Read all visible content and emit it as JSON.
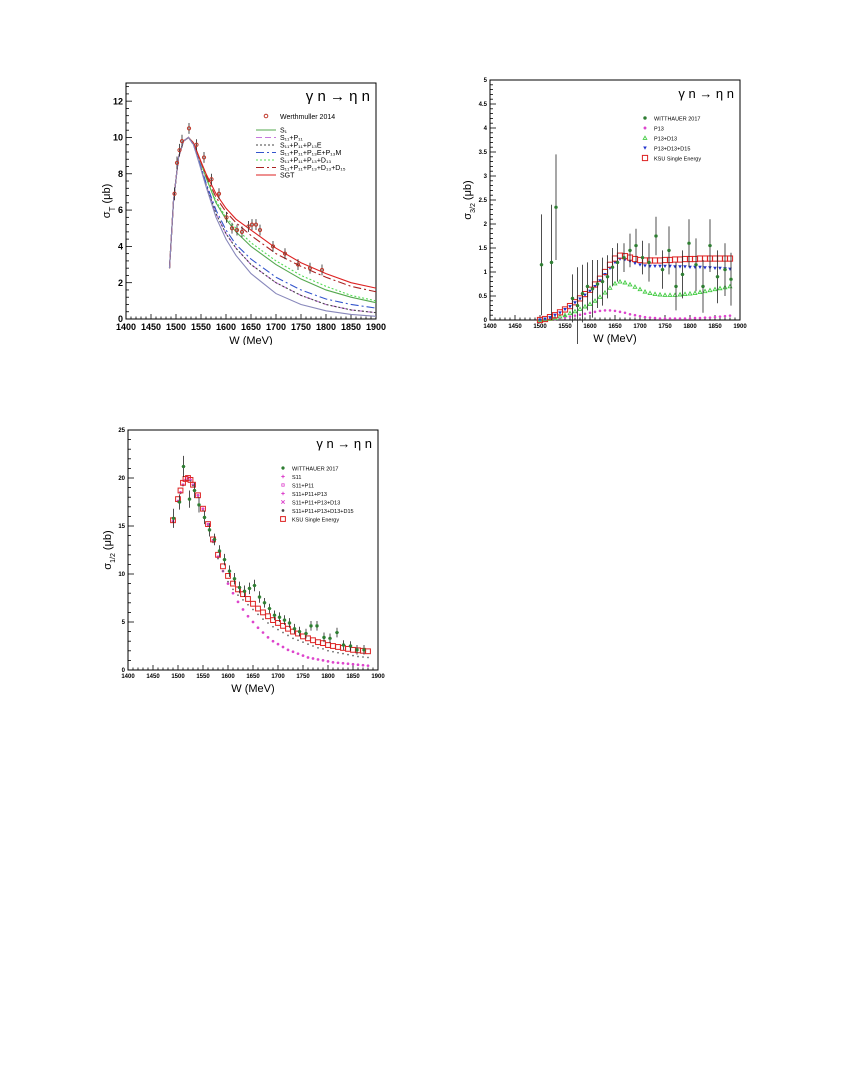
{
  "chart_data": [
    {
      "type": "line",
      "title": "γ n → η n",
      "xlabel": "W (MeV)",
      "ylabel": "σ_T (μb)",
      "xlim": [
        1400,
        1900
      ],
      "ylim": [
        0,
        13
      ],
      "xticks": [
        1400,
        1450,
        1500,
        1550,
        1600,
        1650,
        1700,
        1750,
        1800,
        1850,
        1900
      ],
      "yticks": [
        0,
        2,
        4,
        6,
        8,
        10,
        12
      ],
      "grid": false,
      "legend_position": "top-right",
      "data_series": {
        "name": "Werthmuller 2014",
        "color": "#c0392b",
        "points": [
          {
            "x": 1497,
            "y": 6.9,
            "err": 0.35
          },
          {
            "x": 1502,
            "y": 8.6,
            "err": 0.35
          },
          {
            "x": 1507,
            "y": 9.3,
            "err": 0.35
          },
          {
            "x": 1512,
            "y": 9.8,
            "err": 0.35
          },
          {
            "x": 1526,
            "y": 10.5,
            "err": 0.3
          },
          {
            "x": 1541,
            "y": 9.6,
            "err": 0.3
          },
          {
            "x": 1556,
            "y": 8.9,
            "err": 0.3
          },
          {
            "x": 1571,
            "y": 7.7,
            "err": 0.3
          },
          {
            "x": 1586,
            "y": 6.9,
            "err": 0.3
          },
          {
            "x": 1601,
            "y": 5.6,
            "err": 0.3
          },
          {
            "x": 1612,
            "y": 5.0,
            "err": 0.3
          },
          {
            "x": 1622,
            "y": 4.9,
            "err": 0.3
          },
          {
            "x": 1632,
            "y": 4.8,
            "err": 0.3
          },
          {
            "x": 1645,
            "y": 5.1,
            "err": 0.3
          },
          {
            "x": 1652,
            "y": 5.2,
            "err": 0.3
          },
          {
            "x": 1660,
            "y": 5.2,
            "err": 0.3
          },
          {
            "x": 1668,
            "y": 4.9,
            "err": 0.3
          },
          {
            "x": 1694,
            "y": 4.0,
            "err": 0.3
          },
          {
            "x": 1718,
            "y": 3.6,
            "err": 0.3
          },
          {
            "x": 1744,
            "y": 3.0,
            "err": 0.3
          },
          {
            "x": 1768,
            "y": 2.8,
            "err": 0.3
          },
          {
            "x": 1792,
            "y": 2.7,
            "err": 0.3
          }
        ]
      },
      "curve_x": [
        1487,
        1495,
        1505,
        1515,
        1525,
        1535,
        1545,
        1560,
        1580,
        1600,
        1620,
        1650,
        1700,
        1750,
        1800,
        1850,
        1900
      ],
      "curves": [
        {
          "name": "S₁",
          "color": "#55a84f",
          "dash": "solid",
          "values": [
            2.8,
            6.5,
            8.9,
            9.8,
            10.0,
            9.7,
            9.0,
            7.8,
            6.4,
            5.5,
            4.8,
            4.0,
            3.0,
            2.2,
            1.6,
            1.2,
            0.9
          ]
        },
        {
          "name": "S₁₁+P₁₁",
          "color": "#c678dd",
          "dash": "6,3",
          "values": [
            2.8,
            6.5,
            8.9,
            9.8,
            10.0,
            9.6,
            8.8,
            7.4,
            5.8,
            4.7,
            3.9,
            3.0,
            2.0,
            1.3,
            0.8,
            0.5,
            0.35
          ]
        },
        {
          "name": "S₁₁+P₁₁+P₁₃E",
          "color": "#444444",
          "dash": "2,2",
          "values": [
            2.8,
            6.5,
            8.9,
            9.8,
            10.0,
            9.6,
            8.8,
            7.4,
            5.8,
            4.7,
            3.9,
            3.0,
            2.0,
            1.3,
            0.8,
            0.5,
            0.35
          ]
        },
        {
          "name": "S₁₁+P₁₁+P₁₃E+P₁₃M",
          "color": "#3355cc",
          "dash": "8,3,2,3",
          "values": [
            2.8,
            6.5,
            8.9,
            9.8,
            10.0,
            9.6,
            8.8,
            7.5,
            6.0,
            4.9,
            4.1,
            3.3,
            2.3,
            1.6,
            1.1,
            0.8,
            0.6
          ]
        },
        {
          "name": "S₁₁+P₁₁+P₁₃+D₁₃",
          "color": "#55dd55",
          "dash": "2,2",
          "values": [
            2.8,
            6.5,
            8.9,
            9.8,
            10.0,
            9.7,
            9.0,
            7.8,
            6.5,
            5.6,
            5.0,
            4.2,
            3.2,
            2.4,
            1.8,
            1.3,
            1.0
          ]
        },
        {
          "name": "S₁₁+P₁₁+P₁₃+D₁₃+D₁₅",
          "color": "#aa2222",
          "dash": "8,3,2,3",
          "values": [
            2.8,
            6.5,
            8.9,
            9.8,
            10.0,
            9.7,
            9.0,
            7.9,
            6.7,
            5.9,
            5.3,
            4.6,
            3.6,
            2.9,
            2.3,
            1.8,
            1.5
          ]
        },
        {
          "name": "SGT",
          "color": "#dd2222",
          "dash": "solid",
          "values": [
            2.8,
            6.5,
            8.9,
            9.8,
            10.0,
            9.7,
            9.0,
            8.0,
            6.9,
            6.1,
            5.5,
            4.9,
            3.9,
            3.1,
            2.5,
            2.0,
            1.7
          ]
        },
        {
          "name": "",
          "color": "#8888bb",
          "dash": "solid",
          "values": [
            2.8,
            6.5,
            8.9,
            9.8,
            10.0,
            9.6,
            8.7,
            7.3,
            5.6,
            4.4,
            3.5,
            2.5,
            1.4,
            0.8,
            0.45,
            0.25,
            0.15
          ]
        }
      ]
    },
    {
      "type": "scatter",
      "title": "γ n → η n",
      "xlabel": "W (MeV)",
      "ylabel": "σ_3/2 (μb)",
      "xlim": [
        1400,
        1900
      ],
      "ylim": [
        0,
        5
      ],
      "xticks": [
        1400,
        1450,
        1500,
        1550,
        1600,
        1650,
        1700,
        1750,
        1800,
        1850,
        1900
      ],
      "yticks": [
        0,
        0.5,
        1,
        1.5,
        2,
        2.5,
        3,
        3.5,
        4,
        4.5,
        5
      ],
      "grid": false,
      "legend_position": "top-right",
      "legend": [
        {
          "name": "WITTHAUER 2017",
          "marker": "star",
          "color": "#2e7d32"
        },
        {
          "name": "P13",
          "marker": "dot",
          "color": "#dd44cc"
        },
        {
          "name": "P13+D13",
          "marker": "triangle",
          "color": "#44cc44"
        },
        {
          "name": "P13+D13+D15",
          "marker": "triangle-down",
          "color": "#2233cc"
        },
        {
          "name": "KSU Single Energy",
          "marker": "open-square",
          "color": "#dd2222"
        }
      ],
      "witthauer": [
        {
          "x": 1503,
          "y": 1.15,
          "err": 1.05
        },
        {
          "x": 1523,
          "y": 1.2,
          "err": 1.2
        },
        {
          "x": 1532,
          "y": 2.35,
          "err": 1.1
        },
        {
          "x": 1565,
          "y": 0.45,
          "err": 0.5
        },
        {
          "x": 1575,
          "y": 0.3,
          "err": 0.8
        },
        {
          "x": 1585,
          "y": 0.55,
          "err": 0.6
        },
        {
          "x": 1595,
          "y": 0.7,
          "err": 0.5
        },
        {
          "x": 1605,
          "y": 0.65,
          "err": 0.6
        },
        {
          "x": 1615,
          "y": 0.75,
          "err": 0.5
        },
        {
          "x": 1625,
          "y": 0.8,
          "err": 0.5
        },
        {
          "x": 1635,
          "y": 0.9,
          "err": 0.45
        },
        {
          "x": 1645,
          "y": 1.1,
          "err": 0.4
        },
        {
          "x": 1655,
          "y": 1.2,
          "err": 0.4
        },
        {
          "x": 1668,
          "y": 1.3,
          "err": 0.3
        },
        {
          "x": 1680,
          "y": 1.45,
          "err": 0.35
        },
        {
          "x": 1692,
          "y": 1.55,
          "err": 0.35
        },
        {
          "x": 1705,
          "y": 1.3,
          "err": 0.35
        },
        {
          "x": 1718,
          "y": 1.2,
          "err": 0.4
        },
        {
          "x": 1732,
          "y": 1.75,
          "err": 0.4
        },
        {
          "x": 1745,
          "y": 1.05,
          "err": 0.4
        },
        {
          "x": 1758,
          "y": 1.45,
          "err": 0.5
        },
        {
          "x": 1772,
          "y": 0.7,
          "err": 0.5
        },
        {
          "x": 1785,
          "y": 0.95,
          "err": 0.5
        },
        {
          "x": 1798,
          "y": 1.6,
          "err": 0.5
        },
        {
          "x": 1812,
          "y": 1.15,
          "err": 0.55
        },
        {
          "x": 1826,
          "y": 0.7,
          "err": 0.55
        },
        {
          "x": 1840,
          "y": 1.55,
          "err": 0.55
        },
        {
          "x": 1855,
          "y": 0.9,
          "err": 0.55
        },
        {
          "x": 1870,
          "y": 1.05,
          "err": 0.55
        },
        {
          "x": 1882,
          "y": 0.85,
          "err": 0.55
        }
      ],
      "model_x": [
        1500,
        1510,
        1520,
        1530,
        1540,
        1550,
        1560,
        1570,
        1580,
        1590,
        1600,
        1610,
        1620,
        1630,
        1640,
        1650,
        1660,
        1670,
        1680,
        1690,
        1700,
        1710,
        1720,
        1730,
        1740,
        1750,
        1760,
        1770,
        1780,
        1790,
        1800,
        1810,
        1820,
        1830,
        1840,
        1850,
        1860,
        1870,
        1880
      ],
      "p13": [
        0.0,
        0.0,
        0.01,
        0.02,
        0.03,
        0.05,
        0.07,
        0.09,
        0.11,
        0.13,
        0.15,
        0.17,
        0.19,
        0.2,
        0.2,
        0.19,
        0.17,
        0.15,
        0.12,
        0.1,
        0.08,
        0.06,
        0.05,
        0.04,
        0.03,
        0.03,
        0.03,
        0.03,
        0.03,
        0.03,
        0.03,
        0.04,
        0.04,
        0.05,
        0.05,
        0.06,
        0.07,
        0.08,
        0.09
      ],
      "p13_d13": [
        0.0,
        0.01,
        0.02,
        0.04,
        0.07,
        0.1,
        0.14,
        0.18,
        0.23,
        0.28,
        0.33,
        0.4,
        0.48,
        0.57,
        0.67,
        0.76,
        0.8,
        0.78,
        0.74,
        0.69,
        0.64,
        0.59,
        0.56,
        0.54,
        0.53,
        0.52,
        0.52,
        0.52,
        0.53,
        0.54,
        0.55,
        0.56,
        0.58,
        0.6,
        0.62,
        0.64,
        0.66,
        0.68,
        0.7
      ],
      "p13_d13_d15": [
        0.0,
        0.02,
        0.05,
        0.1,
        0.15,
        0.22,
        0.28,
        0.36,
        0.44,
        0.52,
        0.6,
        0.7,
        0.82,
        0.95,
        1.08,
        1.2,
        1.27,
        1.26,
        1.22,
        1.18,
        1.15,
        1.13,
        1.12,
        1.12,
        1.12,
        1.12,
        1.12,
        1.11,
        1.11,
        1.11,
        1.1,
        1.1,
        1.1,
        1.09,
        1.09,
        1.08,
        1.08,
        1.07,
        1.06
      ],
      "ksu": [
        0.0,
        0.02,
        0.06,
        0.1,
        0.16,
        0.22,
        0.29,
        0.37,
        0.45,
        0.54,
        0.63,
        0.74,
        0.86,
        1.0,
        1.15,
        1.28,
        1.34,
        1.33,
        1.3,
        1.27,
        1.25,
        1.24,
        1.24,
        1.24,
        1.24,
        1.25,
        1.25,
        1.26,
        1.26,
        1.27,
        1.27,
        1.27,
        1.28,
        1.28,
        1.28,
        1.28,
        1.28,
        1.28,
        1.28
      ]
    },
    {
      "type": "scatter",
      "title": "γ n → η n",
      "xlabel": "W (MeV)",
      "ylabel": "σ_1/2 (μb)",
      "xlim": [
        1400,
        1900
      ],
      "ylim": [
        0,
        25
      ],
      "xticks": [
        1400,
        1450,
        1500,
        1550,
        1600,
        1650,
        1700,
        1750,
        1800,
        1850,
        1900
      ],
      "yticks": [
        0,
        5,
        10,
        15,
        20,
        25
      ],
      "grid": false,
      "legend_position": "top-right",
      "legend": [
        {
          "name": "WITTHAUER 2017",
          "marker": "star",
          "color": "#2e7d32"
        },
        {
          "name": "S11",
          "marker": "plus",
          "color": "#dd44cc"
        },
        {
          "name": "S11+P11",
          "marker": "open-square-small",
          "color": "#dd44cc"
        },
        {
          "name": "S11+P11+P13",
          "marker": "plus",
          "color": "#dd44cc"
        },
        {
          "name": "S11+P11+P13+D13",
          "marker": "cross",
          "color": "#dd44cc"
        },
        {
          "name": "S11+P11+P13+D13+D15",
          "marker": "dot",
          "color": "#444444"
        },
        {
          "name": "KSU Single Energy",
          "marker": "open-square",
          "color": "#dd2222"
        }
      ],
      "witthauer": [
        {
          "x": 1491,
          "y": 15.8,
          "err": 1.0
        },
        {
          "x": 1503,
          "y": 17.5,
          "err": 0.8
        },
        {
          "x": 1511,
          "y": 21.2,
          "err": 1.1
        },
        {
          "x": 1523,
          "y": 17.8,
          "err": 0.9
        },
        {
          "x": 1533,
          "y": 18.7,
          "err": 0.8
        },
        {
          "x": 1542,
          "y": 17.2,
          "err": 0.8
        },
        {
          "x": 1553,
          "y": 15.9,
          "err": 0.7
        },
        {
          "x": 1563,
          "y": 14.6,
          "err": 0.7
        },
        {
          "x": 1573,
          "y": 13.6,
          "err": 0.6
        },
        {
          "x": 1583,
          "y": 12.4,
          "err": 0.6
        },
        {
          "x": 1593,
          "y": 11.5,
          "err": 0.6
        },
        {
          "x": 1603,
          "y": 10.3,
          "err": 0.6
        },
        {
          "x": 1613,
          "y": 9.5,
          "err": 0.6
        },
        {
          "x": 1623,
          "y": 8.6,
          "err": 0.6
        },
        {
          "x": 1633,
          "y": 8.2,
          "err": 0.6
        },
        {
          "x": 1643,
          "y": 8.5,
          "err": 0.6
        },
        {
          "x": 1653,
          "y": 8.8,
          "err": 0.6
        },
        {
          "x": 1663,
          "y": 7.6,
          "err": 0.6
        },
        {
          "x": 1673,
          "y": 7.0,
          "err": 0.5
        },
        {
          "x": 1683,
          "y": 6.4,
          "err": 0.5
        },
        {
          "x": 1693,
          "y": 5.7,
          "err": 0.5
        },
        {
          "x": 1703,
          "y": 5.5,
          "err": 0.5
        },
        {
          "x": 1713,
          "y": 5.2,
          "err": 0.5
        },
        {
          "x": 1723,
          "y": 4.9,
          "err": 0.5
        },
        {
          "x": 1733,
          "y": 4.3,
          "err": 0.5
        },
        {
          "x": 1743,
          "y": 4.0,
          "err": 0.5
        },
        {
          "x": 1756,
          "y": 3.8,
          "err": 0.5
        },
        {
          "x": 1766,
          "y": 4.6,
          "err": 0.5
        },
        {
          "x": 1778,
          "y": 4.6,
          "err": 0.5
        },
        {
          "x": 1792,
          "y": 3.4,
          "err": 0.5
        },
        {
          "x": 1804,
          "y": 3.3,
          "err": 0.5
        },
        {
          "x": 1818,
          "y": 3.9,
          "err": 0.5
        },
        {
          "x": 1831,
          "y": 2.6,
          "err": 0.5
        },
        {
          "x": 1845,
          "y": 2.5,
          "err": 0.5
        },
        {
          "x": 1858,
          "y": 2.1,
          "err": 0.5
        },
        {
          "x": 1872,
          "y": 2.1,
          "err": 0.5
        }
      ],
      "model_x": [
        1490,
        1500,
        1505,
        1510,
        1515,
        1520,
        1525,
        1530,
        1540,
        1550,
        1560,
        1570,
        1580,
        1590,
        1600,
        1610,
        1620,
        1630,
        1640,
        1650,
        1660,
        1670,
        1680,
        1690,
        1700,
        1710,
        1720,
        1730,
        1740,
        1750,
        1760,
        1770,
        1780,
        1790,
        1800,
        1810,
        1820,
        1830,
        1840,
        1850,
        1860,
        1870,
        1880
      ],
      "s11": [
        15.5,
        17.6,
        18.5,
        19.3,
        19.8,
        20.0,
        19.8,
        19.3,
        18.2,
        16.8,
        15.2,
        13.5,
        11.8,
        10.3,
        9.0,
        8.0,
        7.1,
        6.3,
        5.6,
        5.0,
        4.4,
        3.9,
        3.4,
        3.0,
        2.7,
        2.4,
        2.1,
        1.9,
        1.7,
        1.5,
        1.3,
        1.2,
        1.1,
        1.0,
        0.9,
        0.8,
        0.75,
        0.7,
        0.65,
        0.6,
        0.55,
        0.5,
        0.45
      ],
      "s11_p11_p13_d13_d15": [
        15.4,
        17.5,
        18.4,
        19.2,
        19.7,
        19.9,
        19.7,
        19.2,
        18.0,
        16.6,
        15.0,
        13.3,
        11.6,
        10.3,
        9.2,
        8.4,
        7.8,
        7.3,
        6.8,
        6.3,
        5.8,
        5.3,
        4.9,
        4.5,
        4.2,
        3.9,
        3.6,
        3.3,
        3.1,
        2.9,
        2.7,
        2.5,
        2.3,
        2.2,
        2.0,
        1.9,
        1.8,
        1.7,
        1.6,
        1.5,
        1.4,
        1.35,
        1.3
      ],
      "ksu": [
        15.6,
        17.8,
        18.7,
        19.5,
        19.9,
        20.0,
        19.8,
        19.3,
        18.2,
        16.8,
        15.2,
        13.6,
        12.0,
        10.8,
        9.8,
        9.0,
        8.4,
        7.9,
        7.4,
        6.9,
        6.4,
        6.0,
        5.6,
        5.2,
        4.9,
        4.6,
        4.3,
        4.0,
        3.8,
        3.5,
        3.3,
        3.1,
        2.9,
        2.8,
        2.6,
        2.5,
        2.4,
        2.3,
        2.2,
        2.1,
        2.05,
        2.0,
        1.95
      ]
    }
  ]
}
